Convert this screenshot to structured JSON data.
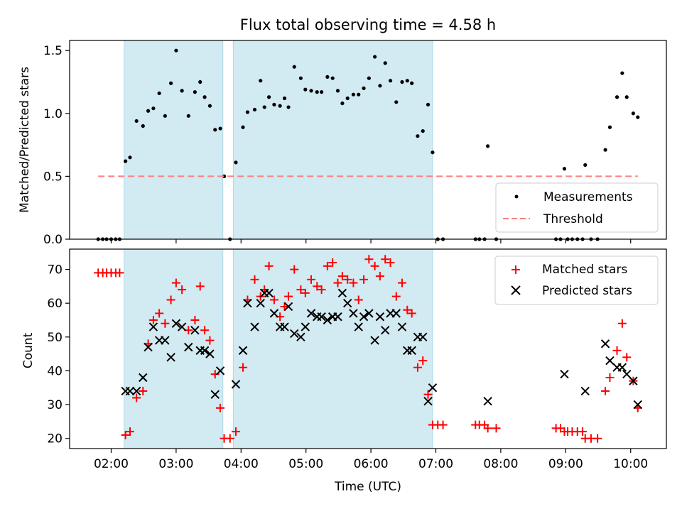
{
  "chart_data": [
    {
      "type": "scatter",
      "title": "Flux total observing time = 4.58 h",
      "xlabel": "",
      "ylabel": "Matched/Predicted stars",
      "x_unit": "hours UTC",
      "xlim": [
        1.36,
        10.55
      ],
      "ylim": [
        0,
        1.58
      ],
      "yticks": [
        0.0,
        0.5,
        1.0,
        1.5
      ],
      "ytick_labels": [
        "0.0",
        "0.5",
        "1.0",
        "1.5"
      ],
      "grid": false,
      "legend_position": "lower right",
      "shaded_intervals": [
        [
          2.2,
          3.72
        ],
        [
          3.88,
          6.95
        ]
      ],
      "shade_color": "#add8e6",
      "series": [
        {
          "name": "Measurements",
          "color": "#000000",
          "marker": "dot",
          "points": [
            [
              1.8,
              0
            ],
            [
              1.87,
              0
            ],
            [
              1.93,
              0
            ],
            [
              2.0,
              0
            ],
            [
              2.07,
              0
            ],
            [
              2.13,
              0
            ],
            [
              2.22,
              0.62
            ],
            [
              2.29,
              0.65
            ],
            [
              2.39,
              0.94
            ],
            [
              2.49,
              0.9
            ],
            [
              2.57,
              1.02
            ],
            [
              2.65,
              1.04
            ],
            [
              2.74,
              1.16
            ],
            [
              2.83,
              0.98
            ],
            [
              2.92,
              1.24
            ],
            [
              3.0,
              1.5
            ],
            [
              3.09,
              1.18
            ],
            [
              3.19,
              0.98
            ],
            [
              3.29,
              1.17
            ],
            [
              3.37,
              1.25
            ],
            [
              3.44,
              1.13
            ],
            [
              3.52,
              1.06
            ],
            [
              3.6,
              0.87
            ],
            [
              3.68,
              0.88
            ],
            [
              3.74,
              0.5
            ],
            [
              3.83,
              0
            ],
            [
              3.92,
              0.61
            ],
            [
              4.03,
              0.89
            ],
            [
              4.1,
              1.01
            ],
            [
              4.21,
              1.03
            ],
            [
              4.3,
              1.26
            ],
            [
              4.36,
              1.05
            ],
            [
              4.43,
              1.13
            ],
            [
              4.51,
              1.07
            ],
            [
              4.6,
              1.06
            ],
            [
              4.67,
              1.12
            ],
            [
              4.73,
              1.05
            ],
            [
              4.82,
              1.37
            ],
            [
              4.92,
              1.28
            ],
            [
              4.99,
              1.19
            ],
            [
              5.08,
              1.18
            ],
            [
              5.17,
              1.17
            ],
            [
              5.24,
              1.17
            ],
            [
              5.33,
              1.29
            ],
            [
              5.41,
              1.28
            ],
            [
              5.49,
              1.18
            ],
            [
              5.56,
              1.08
            ],
            [
              5.64,
              1.12
            ],
            [
              5.73,
              1.15
            ],
            [
              5.81,
              1.15
            ],
            [
              5.89,
              1.2
            ],
            [
              5.97,
              1.28
            ],
            [
              6.06,
              1.45
            ],
            [
              6.14,
              1.22
            ],
            [
              6.22,
              1.4
            ],
            [
              6.3,
              1.26
            ],
            [
              6.39,
              1.09
            ],
            [
              6.48,
              1.25
            ],
            [
              6.56,
              1.26
            ],
            [
              6.63,
              1.24
            ],
            [
              6.72,
              0.82
            ],
            [
              6.8,
              0.86
            ],
            [
              6.88,
              1.07
            ],
            [
              6.95,
              0.69
            ],
            [
              7.03,
              0
            ],
            [
              7.11,
              0
            ],
            [
              7.61,
              0
            ],
            [
              7.67,
              0
            ],
            [
              7.75,
              0
            ],
            [
              7.8,
              0.74
            ],
            [
              7.93,
              0
            ],
            [
              8.85,
              0
            ],
            [
              8.92,
              0
            ],
            [
              8.98,
              0.56
            ],
            [
              9.03,
              0
            ],
            [
              9.1,
              0
            ],
            [
              9.18,
              0
            ],
            [
              9.26,
              0
            ],
            [
              9.3,
              0.59
            ],
            [
              9.39,
              0
            ],
            [
              9.49,
              0
            ],
            [
              9.61,
              0.71
            ],
            [
              9.68,
              0.89
            ],
            [
              9.79,
              1.13
            ],
            [
              9.87,
              1.32
            ],
            [
              9.94,
              1.13
            ],
            [
              10.04,
              1.0
            ],
            [
              10.11,
              0.97
            ]
          ]
        },
        {
          "name": "Threshold",
          "color": "#ff7f7f",
          "line_style": "dashed",
          "points": [
            [
              1.8,
              0.5
            ],
            [
              10.11,
              0.5
            ]
          ]
        }
      ]
    },
    {
      "type": "scatter",
      "title": "",
      "xlabel": "Time (UTC)",
      "ylabel": "Count",
      "x_unit": "hours UTC",
      "xlim": [
        1.36,
        10.55
      ],
      "ylim": [
        17,
        76
      ],
      "xticks": [
        2,
        3,
        4,
        5,
        6,
        7,
        8,
        9,
        10
      ],
      "xtick_labels": [
        "02:00",
        "03:00",
        "04:00",
        "05:00",
        "06:00",
        "07:00",
        "08:00",
        "09:00",
        "10:00"
      ],
      "yticks": [
        20,
        30,
        40,
        50,
        60,
        70
      ],
      "ytick_labels": [
        "20",
        "30",
        "40",
        "50",
        "60",
        "70"
      ],
      "grid": false,
      "legend_position": "upper right",
      "shaded_intervals": [
        [
          2.2,
          3.72
        ],
        [
          3.88,
          6.95
        ]
      ],
      "shade_color": "#add8e6",
      "series": [
        {
          "name": "Matched stars",
          "color": "#ff0000",
          "marker": "plus",
          "points": [
            [
              1.8,
              69
            ],
            [
              1.87,
              69
            ],
            [
              1.93,
              69
            ],
            [
              2.0,
              69
            ],
            [
              2.07,
              69
            ],
            [
              2.13,
              69
            ],
            [
              2.22,
              21
            ],
            [
              2.29,
              22
            ],
            [
              2.39,
              32
            ],
            [
              2.49,
              34
            ],
            [
              2.57,
              48
            ],
            [
              2.65,
              55
            ],
            [
              2.74,
              57
            ],
            [
              2.83,
              54
            ],
            [
              2.92,
              61
            ],
            [
              3.0,
              66
            ],
            [
              3.09,
              64
            ],
            [
              3.19,
              52
            ],
            [
              3.29,
              55
            ],
            [
              3.37,
              65
            ],
            [
              3.44,
              52
            ],
            [
              3.52,
              49
            ],
            [
              3.6,
              39
            ],
            [
              3.68,
              29
            ],
            [
              3.74,
              20
            ],
            [
              3.83,
              20
            ],
            [
              3.92,
              22
            ],
            [
              4.03,
              41
            ],
            [
              4.1,
              61
            ],
            [
              4.21,
              67
            ],
            [
              4.3,
              62
            ],
            [
              4.36,
              64
            ],
            [
              4.43,
              71
            ],
            [
              4.51,
              61
            ],
            [
              4.6,
              56
            ],
            [
              4.67,
              59
            ],
            [
              4.73,
              62
            ],
            [
              4.82,
              70
            ],
            [
              4.92,
              64
            ],
            [
              4.99,
              63
            ],
            [
              5.08,
              67
            ],
            [
              5.17,
              65
            ],
            [
              5.24,
              64
            ],
            [
              5.33,
              71
            ],
            [
              5.41,
              72
            ],
            [
              5.49,
              66
            ],
            [
              5.56,
              68
            ],
            [
              5.64,
              67
            ],
            [
              5.73,
              66
            ],
            [
              5.81,
              61
            ],
            [
              5.89,
              67
            ],
            [
              5.97,
              73
            ],
            [
              6.06,
              71
            ],
            [
              6.14,
              68
            ],
            [
              6.22,
              73
            ],
            [
              6.3,
              72
            ],
            [
              6.39,
              62
            ],
            [
              6.48,
              66
            ],
            [
              6.56,
              58
            ],
            [
              6.63,
              57
            ],
            [
              6.72,
              41
            ],
            [
              6.8,
              43
            ],
            [
              6.88,
              33
            ],
            [
              6.95,
              24
            ],
            [
              7.03,
              24
            ],
            [
              7.11,
              24
            ],
            [
              7.61,
              24
            ],
            [
              7.67,
              24
            ],
            [
              7.75,
              24
            ],
            [
              7.8,
              23
            ],
            [
              7.93,
              23
            ],
            [
              8.85,
              23
            ],
            [
              8.92,
              23
            ],
            [
              8.98,
              22
            ],
            [
              9.03,
              22
            ],
            [
              9.1,
              22
            ],
            [
              9.18,
              22
            ],
            [
              9.26,
              22
            ],
            [
              9.3,
              20
            ],
            [
              9.39,
              20
            ],
            [
              9.49,
              20
            ],
            [
              9.61,
              34
            ],
            [
              9.68,
              38
            ],
            [
              9.79,
              46
            ],
            [
              9.87,
              54
            ],
            [
              9.94,
              44
            ],
            [
              10.04,
              37
            ],
            [
              10.11,
              29
            ]
          ]
        },
        {
          "name": "Predicted stars",
          "color": "#000000",
          "marker": "x",
          "points": [
            [
              2.22,
              34
            ],
            [
              2.29,
              34
            ],
            [
              2.39,
              34
            ],
            [
              2.49,
              38
            ],
            [
              2.57,
              47
            ],
            [
              2.65,
              53
            ],
            [
              2.74,
              49
            ],
            [
              2.83,
              49
            ],
            [
              2.92,
              44
            ],
            [
              3.0,
              54
            ],
            [
              3.09,
              53
            ],
            [
              3.19,
              47
            ],
            [
              3.29,
              52
            ],
            [
              3.37,
              46
            ],
            [
              3.44,
              46
            ],
            [
              3.52,
              45
            ],
            [
              3.6,
              33
            ],
            [
              3.68,
              40
            ],
            [
              3.92,
              36
            ],
            [
              4.03,
              46
            ],
            [
              4.1,
              60
            ],
            [
              4.21,
              53
            ],
            [
              4.3,
              60
            ],
            [
              4.36,
              63
            ],
            [
              4.43,
              63
            ],
            [
              4.51,
              57
            ],
            [
              4.6,
              53
            ],
            [
              4.67,
              53
            ],
            [
              4.73,
              59
            ],
            [
              4.82,
              51
            ],
            [
              4.92,
              50
            ],
            [
              4.99,
              53
            ],
            [
              5.08,
              57
            ],
            [
              5.17,
              56
            ],
            [
              5.24,
              56
            ],
            [
              5.33,
              55
            ],
            [
              5.41,
              56
            ],
            [
              5.49,
              56
            ],
            [
              5.56,
              63
            ],
            [
              5.64,
              60
            ],
            [
              5.73,
              57
            ],
            [
              5.81,
              53
            ],
            [
              5.89,
              56
            ],
            [
              5.97,
              57
            ],
            [
              6.06,
              49
            ],
            [
              6.14,
              56
            ],
            [
              6.22,
              52
            ],
            [
              6.3,
              57
            ],
            [
              6.39,
              57
            ],
            [
              6.48,
              53
            ],
            [
              6.56,
              46
            ],
            [
              6.63,
              46
            ],
            [
              6.72,
              50
            ],
            [
              6.8,
              50
            ],
            [
              6.88,
              31
            ],
            [
              6.95,
              35
            ],
            [
              7.8,
              31
            ],
            [
              8.98,
              39
            ],
            [
              9.3,
              34
            ],
            [
              9.61,
              48
            ],
            [
              9.68,
              43
            ],
            [
              9.79,
              41
            ],
            [
              9.87,
              41
            ],
            [
              9.94,
              39
            ],
            [
              10.04,
              37
            ],
            [
              10.11,
              30
            ]
          ]
        }
      ]
    }
  ]
}
